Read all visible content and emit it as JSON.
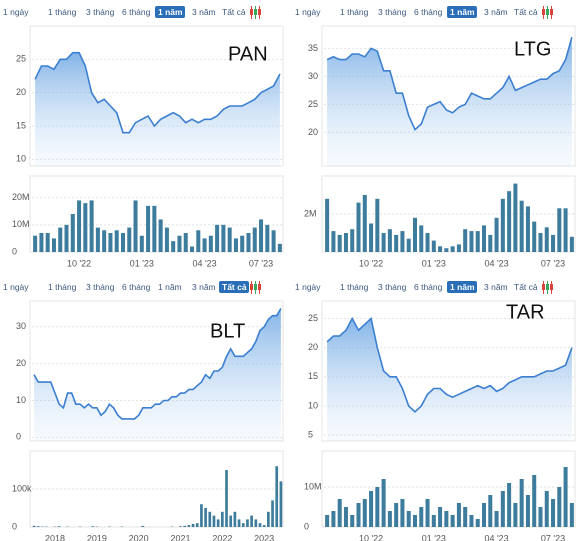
{
  "chart_data": [
    {
      "type": "stock",
      "title": "PAN",
      "buttons": [
        "1 ngày",
        "1 tháng",
        "3 tháng",
        "6 tháng",
        "1 năm",
        "3 năm",
        "Tất cả"
      ],
      "selected": 4,
      "categories": [
        null,
        null,
        null,
        null,
        null,
        null,
        null,
        "10 '22",
        null,
        null,
        null,
        null,
        null,
        null,
        null,
        null,
        null,
        "01 '23",
        null,
        null,
        null,
        null,
        null,
        null,
        null,
        null,
        null,
        "04 '23",
        null,
        null,
        null,
        null,
        null,
        null,
        null,
        null,
        "07 '23",
        null,
        null,
        null
      ],
      "values": [
        22,
        24,
        24,
        23.5,
        25,
        25,
        26,
        26,
        24,
        20,
        18.5,
        19,
        18,
        17,
        14,
        14,
        15.5,
        16,
        16.5,
        15,
        16,
        16.5,
        17,
        16.5,
        15.5,
        16,
        15.5,
        16,
        16,
        16.5,
        17.5,
        18,
        18,
        18,
        18.5,
        19,
        20,
        20.5,
        21,
        22.8
      ],
      "ylim": [
        9,
        30
      ],
      "yticks": [
        10,
        15,
        20,
        25
      ],
      "volume": [
        6000000,
        7000000,
        7000000,
        5000000,
        9000000,
        10000000,
        14000000,
        19000000,
        18000000,
        19000000,
        9000000,
        8000000,
        7000000,
        8000000,
        7000000,
        9000000,
        19000000,
        6000000,
        17000000,
        17000000,
        12000000,
        9000000,
        4000000,
        6000000,
        7000000,
        2000000,
        8000000,
        5000000,
        6000000,
        10000000,
        10000000,
        9000000,
        5000000,
        6000000,
        7000000,
        9000000,
        12000000,
        10000000,
        8000000,
        3000000
      ],
      "vylim": [
        0,
        28000000
      ],
      "vyticks": [
        0,
        {
          "value": 10000000,
          "label": "10M"
        },
        {
          "value": 20000000,
          "label": "20M"
        }
      ],
      "line_color": "#3b7fd0",
      "bar_color": "#3d7c9c",
      "grid": true
    },
    {
      "type": "stock",
      "title": "LTG",
      "buttons": [
        "1 ngày",
        "1 tháng",
        "3 tháng",
        "6 tháng",
        "1 năm",
        "3 năm",
        "Tất cả"
      ],
      "selected": 4,
      "categories": [
        null,
        null,
        null,
        null,
        null,
        null,
        null,
        "10 '22",
        null,
        null,
        null,
        null,
        null,
        null,
        null,
        null,
        null,
        "01 '23",
        null,
        null,
        null,
        null,
        null,
        null,
        null,
        null,
        null,
        "04 '23",
        null,
        null,
        null,
        null,
        null,
        null,
        null,
        null,
        "07 '23",
        null,
        null,
        null
      ],
      "values": [
        33,
        33.5,
        33,
        33,
        34,
        34,
        33.5,
        35,
        34.5,
        31,
        31,
        27,
        27,
        23,
        20.5,
        21.5,
        24.5,
        25,
        25.5,
        24,
        23.5,
        24.5,
        25,
        27,
        26.5,
        26,
        26,
        27,
        28,
        30,
        27.5,
        28,
        28.5,
        29,
        29.5,
        29.5,
        30.5,
        31,
        33,
        37
      ],
      "ylim": [
        14,
        39
      ],
      "yticks": [
        20,
        25,
        30,
        35
      ],
      "volume": [
        2800000,
        1100000,
        900000,
        1000000,
        1200000,
        2600000,
        3000000,
        1500000,
        2800000,
        1000000,
        1200000,
        900000,
        1100000,
        700000,
        1800000,
        1400000,
        1000000,
        600000,
        300000,
        200000,
        300000,
        400000,
        1200000,
        1100000,
        1100000,
        1400000,
        900000,
        1800000,
        2800000,
        3200000,
        3600000,
        2700000,
        2400000,
        1600000,
        1000000,
        1300000,
        900000,
        2300000,
        2300000,
        800000
      ],
      "vylim": [
        0,
        4000000
      ],
      "vyticks": [
        {
          "value": 2000000,
          "label": "2M"
        }
      ],
      "line_color": "#3b7fd0",
      "bar_color": "#3d7c9c",
      "grid": true
    },
    {
      "type": "stock",
      "title": "BLT",
      "buttons": [
        "1 ngày",
        "1 tháng",
        "3 tháng",
        "6 tháng",
        "1 năm",
        "3 năm",
        "Tất cả"
      ],
      "selected": 6,
      "categories": [
        null,
        null,
        null,
        null,
        null,
        "2018",
        null,
        null,
        null,
        null,
        null,
        null,
        null,
        null,
        null,
        "2019",
        null,
        null,
        null,
        null,
        null,
        null,
        null,
        null,
        null,
        "2020",
        null,
        null,
        null,
        null,
        null,
        null,
        null,
        null,
        null,
        "2021",
        null,
        null,
        null,
        null,
        null,
        null,
        null,
        null,
        null,
        "2022",
        null,
        null,
        null,
        null,
        null,
        null,
        null,
        null,
        null,
        "2023",
        null,
        null,
        null,
        null
      ],
      "values": [
        17,
        15,
        15,
        15,
        15,
        12,
        9,
        8,
        12,
        12,
        9,
        9,
        8,
        9,
        8,
        8,
        6,
        7,
        9,
        8,
        6,
        5,
        5,
        5,
        5,
        6,
        8,
        8,
        8,
        9,
        9,
        10,
        10,
        11,
        11,
        12,
        12,
        13,
        13,
        14,
        15,
        17,
        16,
        18,
        18,
        19,
        22,
        24,
        22,
        22,
        22,
        23,
        24,
        26,
        29,
        30,
        32,
        33,
        33,
        35
      ],
      "ylim": [
        -1,
        37
      ],
      "yticks": [
        0,
        10,
        20,
        30
      ],
      "volume": [
        3000,
        2000,
        1000,
        1000,
        0,
        1000,
        2000,
        0,
        1000,
        0,
        0,
        1000,
        0,
        0,
        2000,
        1000,
        0,
        0,
        1000,
        0,
        0,
        1000,
        0,
        0,
        0,
        0,
        3000,
        0,
        0,
        0,
        0,
        0,
        0,
        1000,
        0,
        2000,
        3000,
        5000,
        8000,
        10000,
        60000,
        50000,
        40000,
        30000,
        20000,
        40000,
        150000,
        30000,
        40000,
        20000,
        10000,
        20000,
        30000,
        20000,
        10000,
        5000,
        40000,
        70000,
        160000,
        120000
      ],
      "vylim": [
        0,
        200000
      ],
      "vyticks": [
        0,
        {
          "value": 100000,
          "label": "100k"
        }
      ],
      "line_color": "#3b7fd0",
      "bar_color": "#3d7c9c",
      "grid": true
    },
    {
      "type": "stock",
      "title": "TAR",
      "buttons": [
        "1 ngày",
        "1 tháng",
        "3 tháng",
        "6 tháng",
        "1 năm",
        "3 năm",
        "Tất cả"
      ],
      "selected": 4,
      "categories": [
        null,
        null,
        null,
        null,
        null,
        null,
        null,
        "10 '22",
        null,
        null,
        null,
        null,
        null,
        null,
        null,
        null,
        null,
        "01 '23",
        null,
        null,
        null,
        null,
        null,
        null,
        null,
        null,
        null,
        "04 '23",
        null,
        null,
        null,
        null,
        null,
        null,
        null,
        null,
        "07 '23",
        null,
        null,
        null
      ],
      "values": [
        21,
        22,
        22,
        23,
        25,
        23,
        24,
        25,
        20,
        16,
        15,
        15,
        13,
        10,
        9,
        10,
        12,
        13,
        13,
        12,
        11.5,
        12,
        12.5,
        13,
        13.5,
        13,
        13.5,
        12.5,
        13,
        14,
        14.5,
        15,
        15,
        15,
        15.5,
        16,
        16,
        16.5,
        17,
        20
      ],
      "ylim": [
        4,
        28
      ],
      "yticks": [
        5,
        10,
        15,
        20,
        25
      ],
      "volume": [
        3000000,
        4000000,
        7000000,
        5000000,
        3000000,
        6000000,
        7000000,
        9000000,
        10000000,
        12000000,
        4000000,
        6000000,
        7000000,
        4000000,
        3000000,
        5000000,
        7000000,
        3000000,
        5000000,
        4000000,
        3000000,
        6000000,
        5000000,
        3000000,
        2000000,
        6000000,
        8000000,
        4000000,
        9000000,
        11000000,
        6000000,
        12000000,
        8000000,
        13000000,
        5000000,
        9000000,
        7000000,
        10000000,
        15000000,
        6000000
      ],
      "vylim": [
        0,
        19000000
      ],
      "vyticks": [
        0,
        {
          "value": 10000000,
          "label": "10M"
        }
      ],
      "line_color": "#3b7fd0",
      "bar_color": "#3d7c9c",
      "grid": true
    }
  ]
}
